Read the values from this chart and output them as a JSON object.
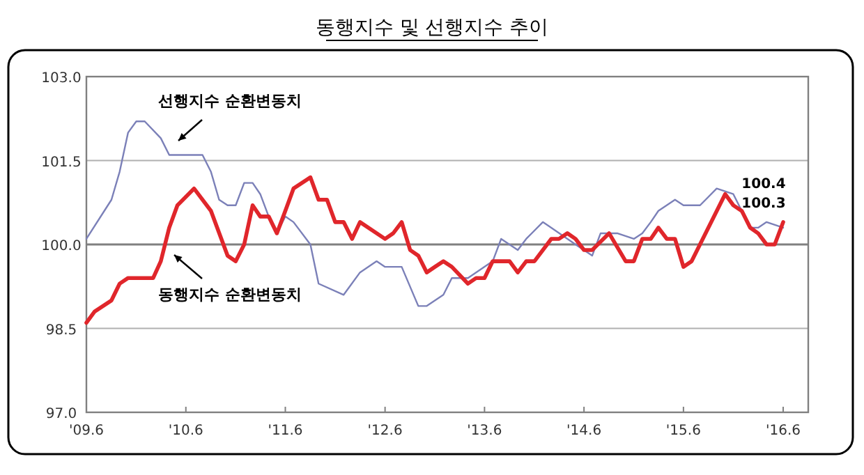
{
  "chart_data": {
    "type": "line",
    "title": "동행지수 및 선행지수 추이",
    "xlim": [
      "2009-06",
      "2016-09"
    ],
    "ylim": [
      97,
      103
    ],
    "xticks": [
      {
        "value": "2009-06",
        "label": "'09.6"
      },
      {
        "value": "2010-06",
        "label": "'10.6"
      },
      {
        "value": "2011-06",
        "label": "'11.6"
      },
      {
        "value": "2012-06",
        "label": "'12.6"
      },
      {
        "value": "2013-06",
        "label": "'13.6"
      },
      {
        "value": "2014-06",
        "label": "'14.6"
      },
      {
        "value": "2015-06",
        "label": "'15.6"
      },
      {
        "value": "2016-06",
        "label": "'16.6"
      }
    ],
    "yticks": [
      {
        "value": 97,
        "label": "97.0"
      },
      {
        "value": 98.5,
        "label": "98.5"
      },
      {
        "value": 100,
        "label": "100.0"
      },
      {
        "value": 101.5,
        "label": "101.5"
      },
      {
        "value": 103,
        "label": "103.0"
      }
    ],
    "grid": "y",
    "marker": "none",
    "line_style": "solid",
    "ref_lines": [
      {
        "axis": "y",
        "value": 100,
        "color": "#808080"
      }
    ],
    "annotations": [
      "100.4",
      "100.3"
    ],
    "series": [
      {
        "name": "선행지수 순환변동치",
        "color": "#7b80b8",
        "x": [
          "2009-06",
          "2009-09",
          "2009-10",
          "2009-11",
          "2009-12",
          "2010-01",
          "2010-03",
          "2010-04",
          "2010-08",
          "2010-09",
          "2010-10",
          "2010-11",
          "2010-12",
          "2011-01",
          "2011-02",
          "2011-03",
          "2011-04",
          "2011-05",
          "2011-06",
          "2011-07",
          "2011-09",
          "2011-10",
          "2012-01",
          "2012-03",
          "2012-05",
          "2012-06",
          "2012-08",
          "2012-10",
          "2012-11",
          "2013-01",
          "2013-02",
          "2013-04",
          "2013-05",
          "2013-07",
          "2013-08",
          "2013-10",
          "2013-11",
          "2014-01",
          "2014-02",
          "2014-05",
          "2014-07",
          "2014-08",
          "2014-10",
          "2014-12",
          "2015-01",
          "2015-02",
          "2015-03",
          "2015-05",
          "2015-06",
          "2015-08",
          "2015-10",
          "2015-12",
          "2016-02",
          "2016-03",
          "2016-04",
          "2016-06"
        ],
        "values": [
          100.1,
          100.8,
          101.3,
          102.0,
          102.2,
          102.2,
          101.9,
          101.6,
          101.6,
          101.3,
          100.8,
          100.7,
          100.7,
          101.1,
          101.1,
          100.9,
          100.5,
          100.2,
          100.5,
          100.4,
          100.0,
          99.3,
          99.1,
          99.5,
          99.7,
          99.6,
          99.6,
          98.9,
          98.9,
          99.1,
          99.4,
          99.4,
          99.5,
          99.7,
          100.1,
          99.9,
          100.1,
          100.4,
          100.3,
          100.0,
          99.8,
          100.2,
          100.2,
          100.1,
          100.2,
          100.4,
          100.6,
          100.8,
          100.7,
          100.7,
          101.0,
          100.9,
          100.3,
          100.3,
          100.4,
          100.3
        ]
      },
      {
        "name": "동행지수 순환변동치",
        "color": "#e0262b",
        "x": [
          "2009-06",
          "2009-07",
          "2009-09",
          "2009-10",
          "2009-11",
          "2010-02",
          "2010-03",
          "2010-04",
          "2010-05",
          "2010-07",
          "2010-09",
          "2010-11",
          "2010-12",
          "2011-01",
          "2011-02",
          "2011-03",
          "2011-04",
          "2011-05",
          "2011-06",
          "2011-07",
          "2011-09",
          "2011-10",
          "2011-11",
          "2011-12",
          "2012-01",
          "2012-02",
          "2012-03",
          "2012-06",
          "2012-07",
          "2012-08",
          "2012-09",
          "2012-10",
          "2012-11",
          "2012-12",
          "2013-01",
          "2013-02",
          "2013-04",
          "2013-05",
          "2013-06",
          "2013-07",
          "2013-09",
          "2013-10",
          "2013-11",
          "2013-12",
          "2014-02",
          "2014-03",
          "2014-04",
          "2014-05",
          "2014-06",
          "2014-07",
          "2014-09",
          "2014-11",
          "2014-12",
          "2015-01",
          "2015-02",
          "2015-03",
          "2015-04",
          "2015-05",
          "2015-06",
          "2015-07",
          "2015-11",
          "2015-12",
          "2016-01",
          "2016-02",
          "2016-03",
          "2016-04",
          "2016-05",
          "2016-06"
        ],
        "values": [
          98.6,
          98.8,
          99.0,
          99.3,
          99.4,
          99.4,
          99.7,
          100.3,
          100.7,
          101.0,
          100.6,
          99.8,
          99.7,
          100.0,
          100.7,
          100.5,
          100.5,
          100.2,
          100.6,
          101.0,
          101.2,
          100.8,
          100.8,
          100.4,
          100.4,
          100.1,
          100.4,
          100.1,
          100.2,
          100.4,
          99.9,
          99.8,
          99.5,
          99.6,
          99.7,
          99.6,
          99.3,
          99.4,
          99.4,
          99.7,
          99.7,
          99.5,
          99.7,
          99.7,
          100.1,
          100.1,
          100.2,
          100.1,
          99.9,
          99.9,
          100.2,
          99.7,
          99.7,
          100.1,
          100.1,
          100.3,
          100.1,
          100.1,
          99.6,
          99.7,
          100.9,
          100.7,
          100.6,
          100.3,
          100.2,
          100.0,
          100.0,
          100.4
        ]
      }
    ]
  }
}
